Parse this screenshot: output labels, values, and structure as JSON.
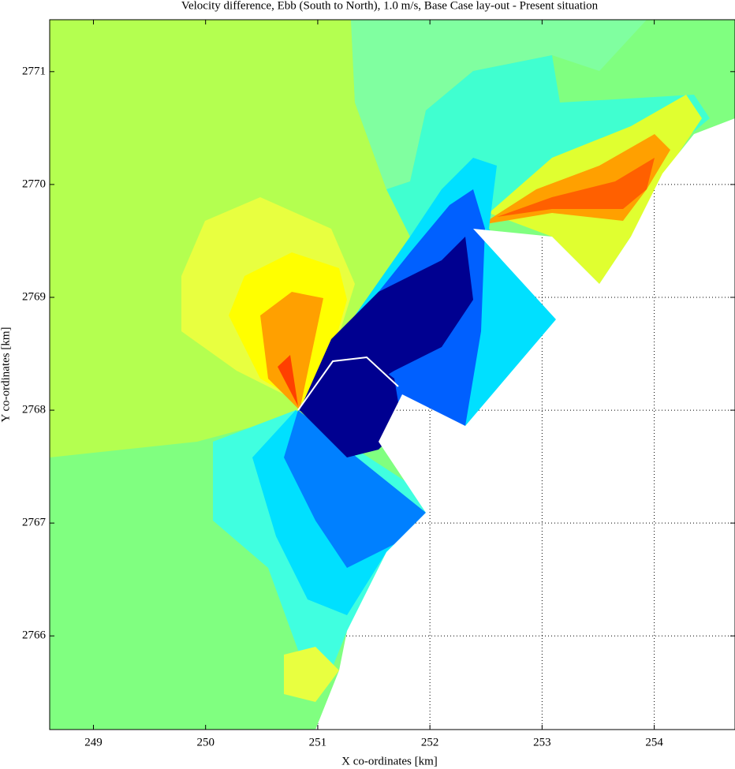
{
  "chart_data": {
    "type": "contour",
    "title": "Velocity difference, Ebb (South to North), 1.0 m/s, Base Case lay-out - Present situation",
    "x_label": "X co-ordinates [km]",
    "y_label": "Y co-ordinates [km]",
    "xlim": [
      248.61,
      254.72
    ],
    "ylim": [
      2765.17,
      2771.46
    ],
    "xticks": [
      249,
      250,
      251,
      252,
      253,
      254
    ],
    "yticks": [
      2766,
      2767,
      2768,
      2769,
      2770,
      2771
    ],
    "grid": true
  }
}
